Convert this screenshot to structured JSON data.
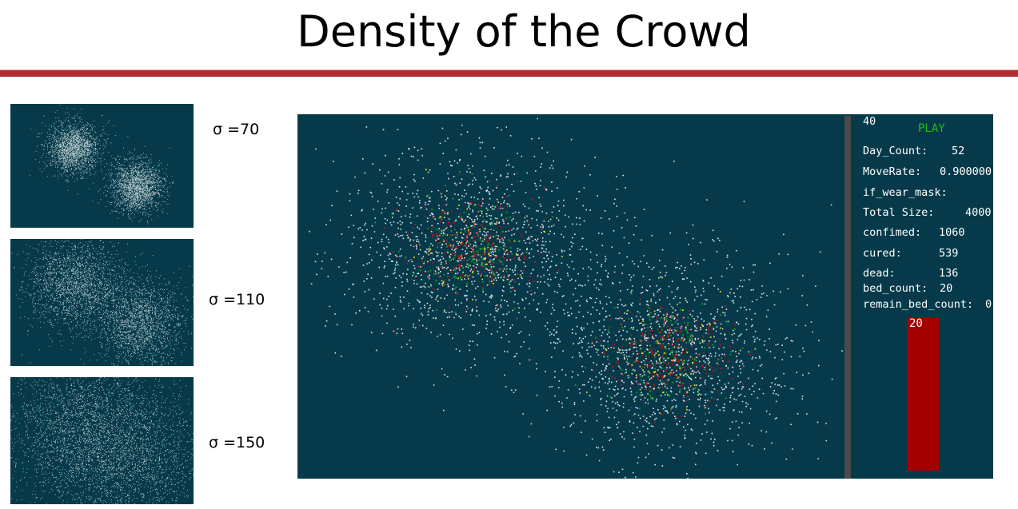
{
  "slide": {
    "title": "Density of the Crowd"
  },
  "thumbnails": [
    {
      "sigma_label": "σ =70"
    },
    {
      "sigma_label": "σ =110"
    },
    {
      "sigma_label": "σ =150"
    }
  ],
  "simulation": {
    "speed_value": "40",
    "play_label": "PLAY",
    "stats": [
      {
        "label": "Day_Count:",
        "value": "52"
      },
      {
        "label": "MoveRate:",
        "value": "0.900000"
      },
      {
        "label": "if_wear_mask:",
        "value": ""
      },
      {
        "label": "Total Size:",
        "value": "4000"
      },
      {
        "label": "confimed:",
        "value": "1060"
      },
      {
        "label": "cured:",
        "value": "539"
      },
      {
        "label": "dead:",
        "value": "136"
      },
      {
        "label": "bed_count:",
        "value": "20"
      },
      {
        "label": "remain_bed_count:",
        "value": "0"
      }
    ],
    "bed_bar_label": "20",
    "colors": {
      "background": "#063a4a",
      "healthy": "#dde6e8",
      "infected": "#c1121a",
      "cured": "#19a21a",
      "exposed": "#e8d21a",
      "dead": "#111111",
      "bar": "#a30000"
    }
  }
}
